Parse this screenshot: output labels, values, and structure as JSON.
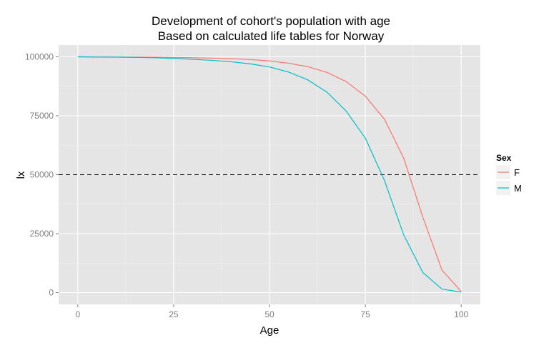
{
  "chart_data": {
    "type": "line",
    "title": "Development of cohort's population with age",
    "subtitle": "Based on calculated life tables for Norway",
    "xlabel": "Age",
    "ylabel": "lx",
    "xlim": [
      -5,
      105
    ],
    "ylim": [
      -5000,
      105000
    ],
    "x_ticks": [
      0,
      25,
      50,
      75,
      100
    ],
    "y_ticks": [
      0,
      25000,
      50000,
      75000,
      100000
    ],
    "grid": true,
    "reference_line": {
      "y": 50000,
      "style": "dashed"
    },
    "legend": {
      "title": "Sex",
      "position": "right"
    },
    "x": [
      0,
      5,
      10,
      15,
      20,
      25,
      30,
      35,
      40,
      45,
      50,
      55,
      60,
      65,
      70,
      75,
      80,
      85,
      90,
      95,
      100
    ],
    "series": [
      {
        "name": "F",
        "color": "#F8766D",
        "values": [
          100000,
          99900,
          99880,
          99850,
          99800,
          99700,
          99600,
          99450,
          99200,
          98850,
          98250,
          97300,
          95800,
          93400,
          89500,
          83300,
          73500,
          57000,
          32000,
          9500,
          500
        ]
      },
      {
        "name": "M",
        "color": "#00BFC4",
        "values": [
          100000,
          99880,
          99850,
          99780,
          99600,
          99300,
          98950,
          98500,
          97900,
          97000,
          95700,
          93500,
          90200,
          85000,
          77000,
          65500,
          47500,
          24500,
          8500,
          1500,
          200
        ]
      }
    ]
  }
}
